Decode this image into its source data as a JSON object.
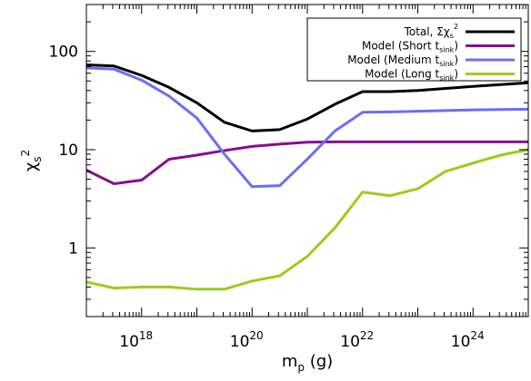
{
  "chart_data": {
    "type": "line",
    "xscale": "log",
    "yscale": "log",
    "xlim": [
      1e+17,
      1e+25
    ],
    "ylim": [
      0.2,
      300
    ],
    "xlabel": "m_p (g)",
    "ylabel": "χ_s^2",
    "x_ticks": [
      {
        "value": 1e+18,
        "base": "10",
        "exp": "18"
      },
      {
        "value": 1e+20,
        "base": "10",
        "exp": "20"
      },
      {
        "value": 1e+22,
        "base": "10",
        "exp": "22"
      },
      {
        "value": 1e+24,
        "base": "10",
        "exp": "24"
      }
    ],
    "y_ticks": [
      {
        "value": 1,
        "label": "1"
      },
      {
        "value": 10,
        "label": "10"
      },
      {
        "value": 100,
        "label": "100"
      }
    ],
    "legend_position": "top-right",
    "x": [
      1e+17,
      3.16e+17,
      1e+18,
      3.16e+18,
      1e+19,
      3.16e+19,
      1e+20,
      3.16e+20,
      1e+21,
      3.16e+21,
      1e+22,
      3.16e+22,
      1e+23,
      3.16e+23,
      1e+24,
      3.16e+24,
      1e+25
    ],
    "series": [
      {
        "name": "Total, Σχ_s^2",
        "legend_main": "Total, Σχ",
        "legend_sub": "s",
        "legend_sup": "2",
        "color": "#000000",
        "values": [
          73,
          71,
          57,
          43,
          30,
          19,
          15.5,
          16,
          20.5,
          29,
          39,
          39,
          40,
          42,
          44,
          46,
          48
        ]
      },
      {
        "name": "Model (Short t_sink)",
        "legend_main": "Model (Short t",
        "legend_sub": "sink",
        "legend_tail": ")",
        "color": "#880e8c",
        "values": [
          6.2,
          4.5,
          4.9,
          8,
          8.8,
          9.8,
          10.8,
          11.4,
          11.9,
          12,
          12,
          12,
          12,
          12,
          12,
          12,
          12
        ]
      },
      {
        "name": "Model (Medium t_sink)",
        "legend_main": "Model (Medium t",
        "legend_sub": "sink",
        "legend_tail": ")",
        "color": "#6a6ff6",
        "values": [
          68,
          66,
          51,
          35,
          21,
          9,
          4.2,
          4.3,
          8,
          15.5,
          24,
          24.2,
          24.6,
          25,
          25.4,
          25.6,
          25.8
        ]
      },
      {
        "name": "Model (Long t_sink)",
        "legend_main": "Model (Long t",
        "legend_sub": "sink",
        "legend_tail": ")",
        "color": "#9ccc1b",
        "values": [
          0.45,
          0.39,
          0.4,
          0.4,
          0.38,
          0.38,
          0.46,
          0.52,
          0.82,
          1.6,
          3.7,
          3.4,
          4,
          6,
          7.3,
          8.8,
          10
        ]
      }
    ]
  }
}
